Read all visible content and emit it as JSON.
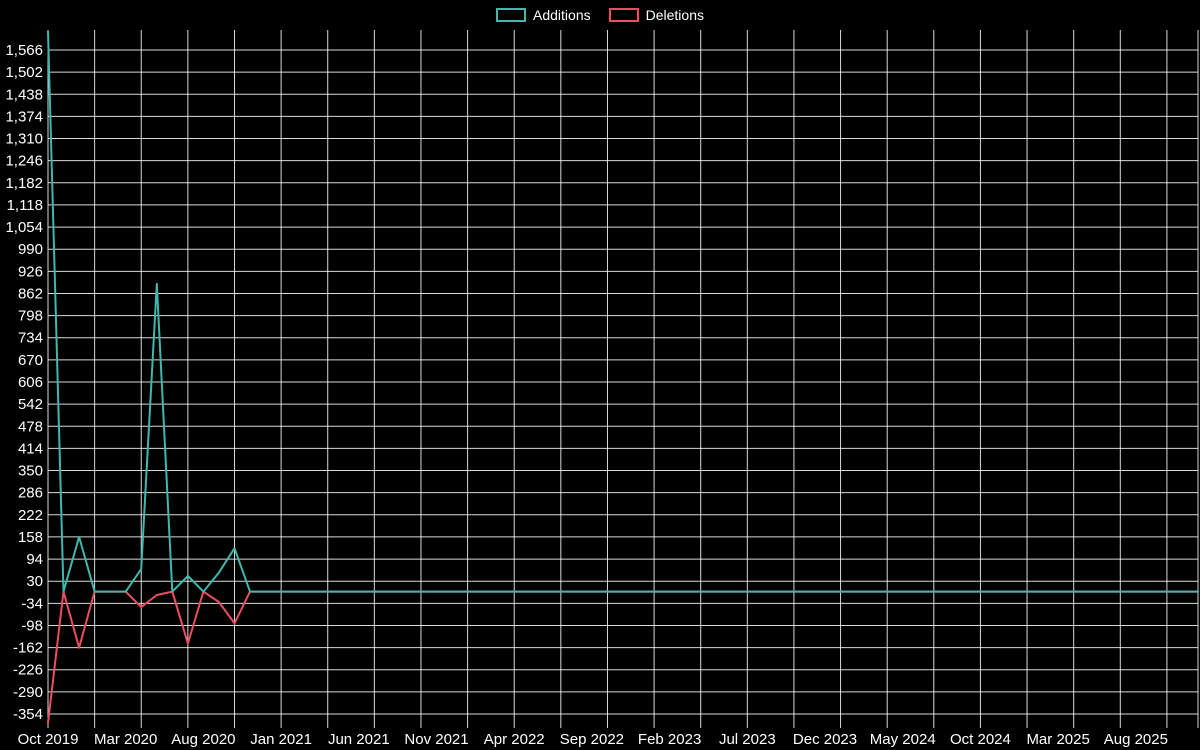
{
  "page": {
    "background": "#000000",
    "text_color": "#ffffff"
  },
  "chart_data": {
    "type": "line",
    "title": "",
    "legend_position": "top-center",
    "grid": {
      "horizontal": true,
      "vertical": true,
      "vertical_month_step": 3,
      "color": "#ffffff",
      "opacity": 0.85
    },
    "x_axis": {
      "unit": "month",
      "start": "Oct 2019",
      "end": "Dec 2025",
      "tick_month_step": 5,
      "tick_labels": [
        "Oct 2019",
        "Mar 2020",
        "Aug 2020",
        "Jan 2021",
        "Jun 2021",
        "Nov 2021",
        "Apr 2022",
        "Sep 2022",
        "Feb 2023",
        "Jul 2023",
        "Dec 2023",
        "May 2024",
        "Oct 2024",
        "Mar 2025",
        "Aug 2025"
      ]
    },
    "y_axis": {
      "min_tick": -354,
      "max_tick": 1566,
      "tick_step": 64,
      "tick_labels": [
        "1,566",
        "1,502",
        "1,438",
        "1,374",
        "1,310",
        "1,246",
        "1,182",
        "1,118",
        "1,054",
        "990",
        "926",
        "862",
        "798",
        "734",
        "670",
        "606",
        "542",
        "478",
        "414",
        "350",
        "286",
        "222",
        "158",
        "94",
        "30",
        "-34",
        "-98",
        "-162",
        "-226",
        "-290",
        "-354"
      ]
    },
    "x_values_months": [
      "2019-10",
      "2019-11",
      "2019-12",
      "2020-01",
      "2020-02",
      "2020-03",
      "2020-04",
      "2020-05",
      "2020-06",
      "2020-07",
      "2020-08",
      "2020-09",
      "2020-10",
      "2020-11",
      "2020-12",
      "2021-01",
      "2021-02",
      "2021-03",
      "2021-04",
      "2021-05",
      "2021-06",
      "2021-07",
      "2021-08",
      "2021-09",
      "2021-10",
      "2021-11",
      "2021-12",
      "2022-01",
      "2022-02",
      "2022-03",
      "2022-04",
      "2022-05",
      "2022-06",
      "2022-07",
      "2022-08",
      "2022-09",
      "2022-10",
      "2022-11",
      "2022-12",
      "2023-01",
      "2023-02",
      "2023-03",
      "2023-04",
      "2023-05",
      "2023-06",
      "2023-07",
      "2023-08",
      "2023-09",
      "2023-10",
      "2023-11",
      "2023-12",
      "2024-01",
      "2024-02",
      "2024-03",
      "2024-04",
      "2024-05",
      "2024-06",
      "2024-07",
      "2024-08",
      "2024-09",
      "2024-10",
      "2024-11",
      "2024-12",
      "2025-01",
      "2025-02",
      "2025-03",
      "2025-04",
      "2025-05",
      "2025-06",
      "2025-07",
      "2025-08",
      "2025-09",
      "2025-10",
      "2025-11",
      "2025-12"
    ],
    "series": [
      {
        "name": "Additions",
        "color": "#3fb8ae",
        "values": [
          1620,
          0,
          158,
          0,
          0,
          0,
          65,
          890,
          0,
          45,
          0,
          55,
          125,
          0,
          0,
          0,
          0,
          0,
          0,
          0,
          0,
          0,
          0,
          0,
          0,
          0,
          0,
          0,
          0,
          0,
          0,
          0,
          0,
          0,
          0,
          0,
          0,
          0,
          0,
          0,
          0,
          0,
          0,
          0,
          0,
          0,
          0,
          0,
          0,
          0,
          0,
          0,
          0,
          0,
          0,
          0,
          0,
          0,
          0,
          0,
          0,
          0,
          0,
          0,
          0,
          0,
          0,
          0,
          0,
          0,
          0,
          0,
          0,
          0,
          0
        ]
      },
      {
        "name": "Deletions",
        "color": "#ec4d5f",
        "values": [
          -380,
          0,
          -162,
          0,
          0,
          0,
          -45,
          -10,
          0,
          -150,
          0,
          -30,
          -92,
          0,
          0,
          0,
          0,
          0,
          0,
          0,
          0,
          0,
          0,
          0,
          0,
          0,
          0,
          0,
          0,
          0,
          0,
          0,
          0,
          0,
          0,
          0,
          0,
          0,
          0,
          0,
          0,
          0,
          0,
          0,
          0,
          0,
          0,
          0,
          0,
          0,
          0,
          0,
          0,
          0,
          0,
          0,
          0,
          0,
          0,
          0,
          0,
          0,
          0,
          0,
          0,
          0,
          0,
          0,
          0,
          0,
          0,
          0,
          0,
          0,
          0
        ]
      }
    ]
  }
}
